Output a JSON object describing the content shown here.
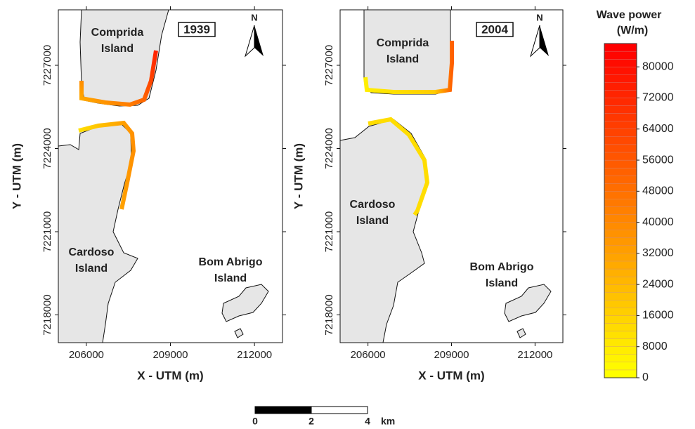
{
  "panels": [
    {
      "year": "1939",
      "north": "N",
      "xlabel": "X - UTM (m)",
      "ylabel": "Y - UTM (m)",
      "xlim": [
        205000,
        213000
      ],
      "ylim": [
        7217000,
        7229000
      ],
      "xticks": [
        206000,
        209000,
        212000
      ],
      "yticks": [
        7218000,
        7221000,
        7224000,
        7227000
      ],
      "labels": [
        [
          "Comprida",
          "Island"
        ],
        [
          "Cardoso",
          "Island"
        ],
        [
          "Bom Abrigo",
          "Island"
        ]
      ]
    },
    {
      "year": "2004",
      "north": "N",
      "xlabel": "X - UTM (m)",
      "ylabel": "Y - UTM (m)",
      "xlim": [
        205000,
        213000
      ],
      "ylim": [
        7217000,
        7229000
      ],
      "xticks": [
        206000,
        209000,
        212000
      ],
      "yticks": [
        7218000,
        7221000,
        7224000,
        7227000
      ],
      "labels": [
        [
          "Comprida",
          "Island"
        ],
        [
          "Cardoso",
          "Island"
        ],
        [
          "Bom Abrigo",
          "Island"
        ]
      ]
    }
  ],
  "colorbar": {
    "title": [
      "Wave power",
      "(W/m)"
    ],
    "clim": [
      0,
      86000
    ],
    "ticks": [
      0,
      8000,
      16000,
      24000,
      32000,
      40000,
      48000,
      56000,
      64000,
      72000,
      80000
    ]
  },
  "scale_bar": {
    "ticks": [
      0,
      2,
      4
    ],
    "unit": "km"
  }
}
